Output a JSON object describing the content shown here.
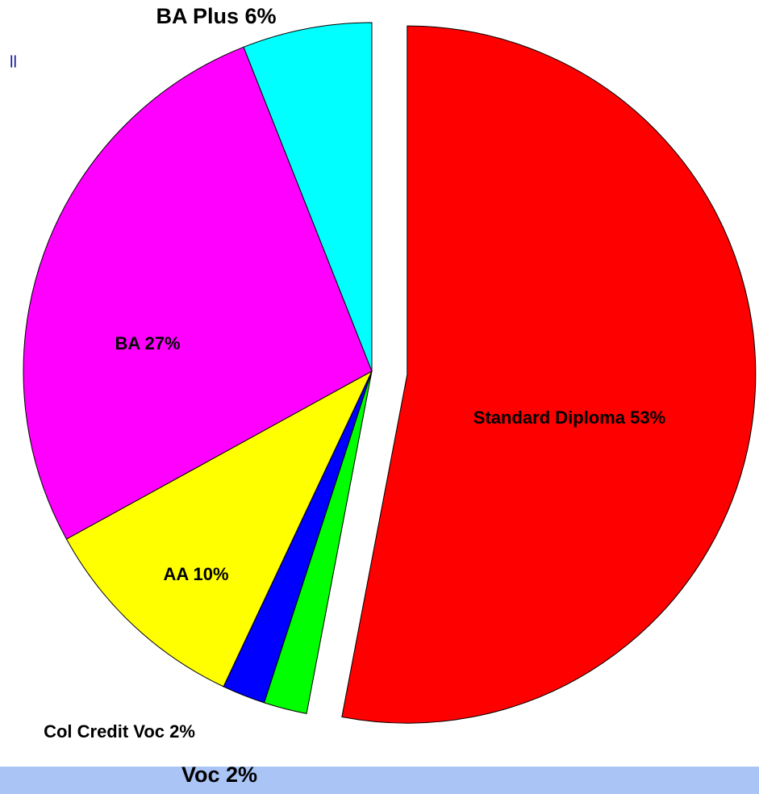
{
  "fragment": "ll",
  "chart_data": {
    "type": "pie",
    "values": [
      53,
      2,
      2,
      10,
      27,
      6
    ],
    "value_labels": [
      "Standard Diploma 53%",
      "Voc 2%",
      "Col Credit Voc 2%",
      "AA 10%",
      "BA 27%",
      "BA Plus 6%"
    ],
    "colors": [
      "#ff0000",
      "#00ff00",
      "#0000ff",
      "#ffff00",
      "#ff00ff",
      "#00ffff"
    ]
  }
}
